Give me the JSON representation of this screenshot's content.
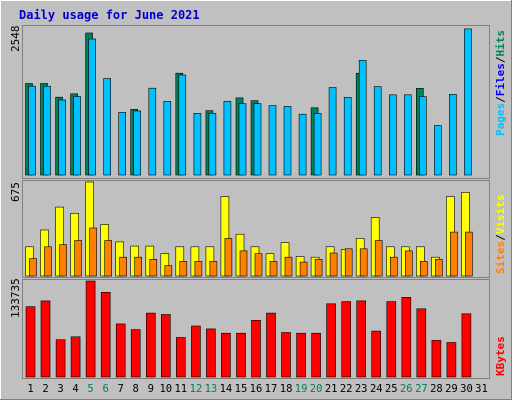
{
  "title": "Daily usage for June 2021",
  "colors": {
    "background": "#c0c0c0",
    "title": "#0000cc",
    "hits": "#00805c",
    "files": "#0000ff",
    "pages": "#00c0ff",
    "visits": "#ffff00",
    "sites": "#ff8000",
    "kbytes": "#ff0000",
    "weekend_label": "#00805c",
    "weekday_label": "#000000"
  },
  "chart_data": [
    {
      "type": "bar",
      "panel": "hits-files-pages",
      "ymax_label": "2548",
      "ymax": 2548,
      "legend": [
        {
          "name": "Hits",
          "color_key": "hits"
        },
        {
          "name": "Files",
          "color_key": "files"
        },
        {
          "name": "Pages",
          "color_key": "pages"
        }
      ],
      "legend_separator": "/",
      "categories": [
        "1",
        "2",
        "3",
        "4",
        "5",
        "6",
        "7",
        "8",
        "9",
        "10",
        "11",
        "12",
        "13",
        "14",
        "15",
        "16",
        "17",
        "18",
        "19",
        "20",
        "21",
        "22",
        "23",
        "24",
        "25",
        "26",
        "27",
        "28",
        "29",
        "30",
        "31"
      ],
      "series": [
        {
          "name": "Hits",
          "values": [
            1565,
            1565,
            1330,
            1389,
            2428,
            0,
            0,
            1123,
            0,
            0,
            1740,
            0,
            1100,
            0,
            1319,
            1270,
            0,
            0,
            0,
            1150,
            0,
            0,
            1740,
            0,
            0,
            0,
            1482,
            0,
            0,
            0,
            0
          ]
        },
        {
          "name": "Files",
          "values": [
            0,
            0,
            0,
            0,
            0,
            0,
            0,
            0,
            0,
            0,
            0,
            0,
            0,
            0,
            0,
            0,
            0,
            0,
            0,
            0,
            0,
            0,
            0,
            0,
            0,
            0,
            0,
            0,
            0,
            0,
            0
          ]
        },
        {
          "name": "Pages",
          "values": [
            1518,
            1518,
            1282,
            1342,
            2326,
            1650,
            1070,
            1095,
            1484,
            1261,
            1710,
            1055,
            1055,
            1260,
            1220,
            1220,
            1186,
            1173,
            1040,
            1055,
            1497,
            1329,
            1961,
            1512,
            1372,
            1372,
            1342,
            847,
            1380,
            2498,
            0
          ]
        }
      ]
    },
    {
      "type": "bar",
      "panel": "visits-sites",
      "ymax_label": "675",
      "ymax": 675,
      "legend": [
        {
          "name": "Visits",
          "color_key": "visits"
        },
        {
          "name": "Sites",
          "color_key": "sites"
        }
      ],
      "legend_separator": "/",
      "categories": [
        "1",
        "2",
        "3",
        "4",
        "5",
        "6",
        "7",
        "8",
        "9",
        "10",
        "11",
        "12",
        "13",
        "14",
        "15",
        "16",
        "17",
        "18",
        "19",
        "20",
        "21",
        "22",
        "23",
        "24",
        "25",
        "26",
        "27",
        "28",
        "29",
        "30",
        "31"
      ],
      "series": [
        {
          "name": "Visits",
          "values": [
            210,
            330,
            495,
            450,
            675,
            370,
            245,
            215,
            215,
            160,
            210,
            210,
            210,
            570,
            300,
            210,
            160,
            240,
            140,
            135,
            210,
            190,
            270,
            420,
            210,
            210,
            210,
            135,
            570,
            600,
            0
          ]
        },
        {
          "name": "Sites",
          "values": [
            125,
            210,
            225,
            255,
            345,
            255,
            135,
            135,
            120,
            75,
            105,
            105,
            105,
            270,
            180,
            160,
            105,
            135,
            100,
            120,
            165,
            195,
            195,
            255,
            135,
            180,
            105,
            120,
            315,
            315,
            0
          ]
        }
      ]
    },
    {
      "type": "bar",
      "panel": "kbytes",
      "ymax_label": "133735",
      "ymax": 133735,
      "legend": [
        {
          "name": "KBytes",
          "color_key": "kbytes"
        }
      ],
      "categories": [
        "1",
        "2",
        "3",
        "4",
        "5",
        "6",
        "7",
        "8",
        "9",
        "10",
        "11",
        "12",
        "13",
        "14",
        "15",
        "16",
        "17",
        "18",
        "19",
        "20",
        "21",
        "22",
        "23",
        "24",
        "25",
        "26",
        "27",
        "28",
        "29",
        "30",
        "31"
      ],
      "series": [
        {
          "name": "KBytes",
          "values": [
            98000,
            106000,
            52000,
            56000,
            133735,
            118000,
            74000,
            66000,
            89000,
            87000,
            55000,
            71000,
            67000,
            61000,
            61000,
            79000,
            89000,
            62000,
            61000,
            61000,
            102000,
            105000,
            106000,
            64000,
            105000,
            111000,
            95000,
            51000,
            48000,
            88000,
            0
          ]
        }
      ]
    }
  ],
  "x_axis": {
    "labels": [
      "1",
      "2",
      "3",
      "4",
      "5",
      "6",
      "7",
      "8",
      "9",
      "10",
      "11",
      "12",
      "13",
      "14",
      "15",
      "16",
      "17",
      "18",
      "19",
      "20",
      "21",
      "22",
      "23",
      "24",
      "25",
      "26",
      "27",
      "28",
      "29",
      "30",
      "31"
    ],
    "weekend_days": [
      "5",
      "6",
      "12",
      "13",
      "19",
      "20",
      "26",
      "27"
    ]
  }
}
